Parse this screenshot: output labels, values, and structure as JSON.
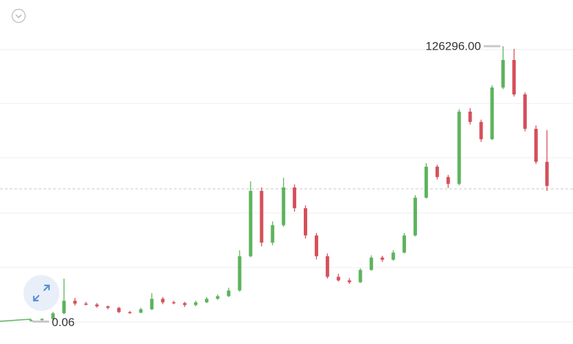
{
  "chart_data": {
    "type": "candlestick",
    "log": true,
    "ylim": [
      0.022,
      1450000
    ],
    "up_color": "#5db35d",
    "down_color": "#d5505a",
    "open": [
      0.062,
      0.065,
      0.069,
      0.093,
      0.18,
      0.155,
      0.148,
      0.134,
      0.124,
      0.099,
      0.096,
      0.115,
      0.2,
      0.166,
      0.16,
      0.144,
      0.166,
      0.2,
      0.23,
      0.31,
      1.9,
      60,
      3.9,
      9.8,
      72,
      24,
      5.7,
      1.9,
      0.64,
      0.53,
      0.48,
      0.92,
      1.77,
      1.58,
      2.3,
      5.7,
      42,
      216,
      125,
      87,
      3970,
      2300,
      925,
      14200,
      60800,
      9860,
      1600,
      279
    ],
    "high": [
      0.068,
      0.072,
      0.1,
      0.58,
      0.21,
      0.17,
      0.16,
      0.14,
      0.13,
      0.105,
      0.125,
      0.27,
      0.22,
      0.18,
      0.17,
      0.18,
      0.22,
      0.25,
      0.36,
      2.6,
      100,
      72,
      12,
      120,
      85,
      28,
      6.5,
      2.2,
      0.75,
      0.6,
      1.0,
      2.0,
      1.95,
      2.6,
      6.5,
      48,
      260,
      240,
      140,
      4500,
      4800,
      2600,
      16000,
      126296,
      110000,
      11000,
      1900,
      1500
    ],
    "low": [
      0.06,
      0.063,
      0.067,
      0.088,
      0.14,
      0.14,
      0.125,
      0.115,
      0.094,
      0.09,
      0.093,
      0.11,
      0.15,
      0.15,
      0.13,
      0.135,
      0.16,
      0.19,
      0.22,
      0.29,
      1.8,
      3.2,
      3.4,
      9,
      20,
      4.8,
      1.6,
      0.58,
      0.5,
      0.44,
      0.46,
      0.88,
      1.4,
      1.5,
      2.2,
      5.4,
      40,
      110,
      70,
      80,
      2000,
      800,
      880,
      13000,
      8800,
      1400,
      250,
      60
    ],
    "close": [
      0.065,
      0.069,
      0.093,
      0.18,
      0.155,
      0.148,
      0.134,
      0.124,
      0.099,
      0.096,
      0.115,
      0.2,
      0.166,
      0.16,
      0.144,
      0.166,
      0.2,
      0.23,
      0.31,
      1.9,
      60,
      3.9,
      9.8,
      72,
      24,
      5.7,
      1.9,
      0.64,
      0.53,
      0.48,
      0.92,
      1.77,
      1.58,
      2.3,
      5.7,
      42,
      216,
      125,
      87,
      3970,
      2300,
      925,
      14200,
      60800,
      9860,
      1600,
      279,
      78
    ],
    "annotations": [
      {
        "value": 126296,
        "label": "126296.00"
      },
      {
        "value": 0.06,
        "label": "0.06"
      }
    ]
  }
}
